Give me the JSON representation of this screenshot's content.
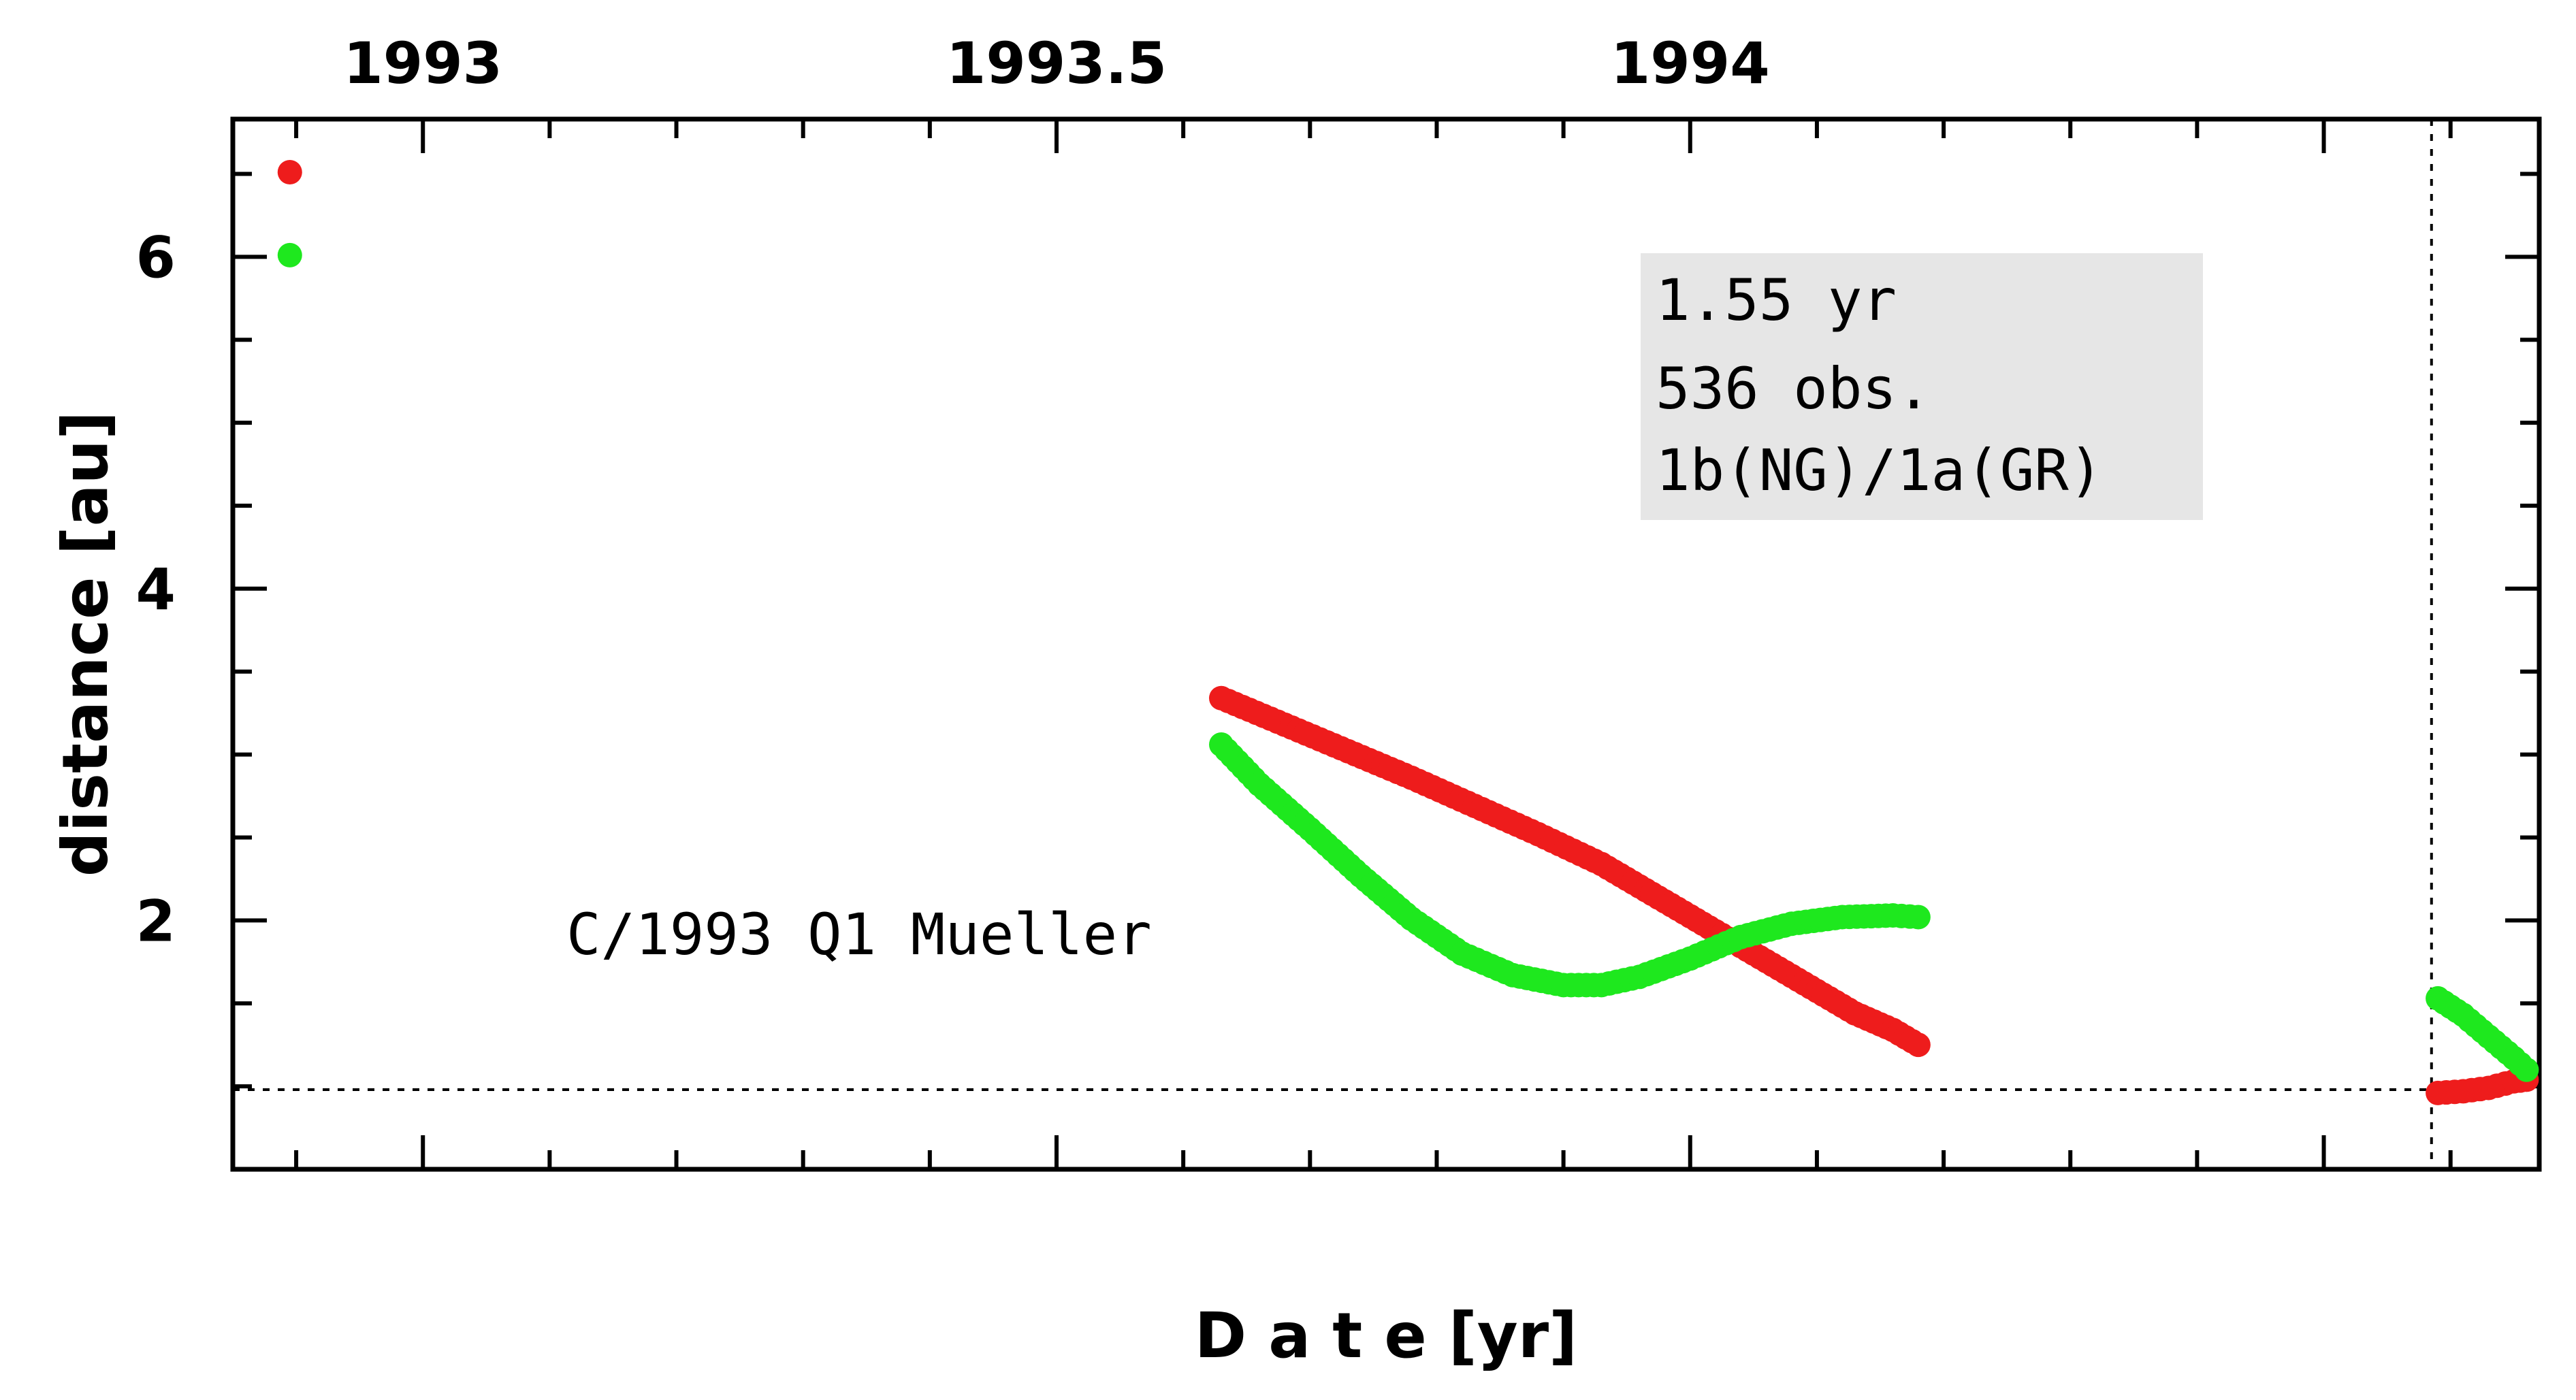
{
  "chart_data": {
    "type": "scatter",
    "title": "",
    "xlabel": "D a t e [yr]",
    "ylabel": "distance [au]",
    "xlim": [
      1992.85,
      1994.67
    ],
    "ylim": [
      0.5,
      6.83
    ],
    "x_ticks": [
      1993,
      1993.5,
      1994
    ],
    "y_ticks": [
      2,
      4,
      6
    ],
    "grid": false,
    "legend": "none",
    "colors": {
      "red_series": "#ee1c1c",
      "green_series": "#1ee81e",
      "box": "#e6e6e6"
    },
    "reference_lines": {
      "horizontal_y": 0.98,
      "vertical_x": 1994.585
    },
    "annotation_box": [
      "1.55 yr",
      "536 obs.",
      "1b(NG)/1a(GR)"
    ],
    "object_label": "C/1993 Q1 Mueller",
    "series": [
      {
        "color": "#ee1c1c",
        "points": [
          [
            1992.895,
            6.51
          ],
          [
            1993.63,
            3.34
          ],
          [
            1993.68,
            3.18
          ],
          [
            1993.73,
            3.02
          ],
          [
            1993.78,
            2.86
          ],
          [
            1993.83,
            2.69
          ],
          [
            1993.88,
            2.52
          ],
          [
            1993.93,
            2.34
          ],
          [
            1993.97,
            2.16
          ],
          [
            1994.01,
            1.98
          ],
          [
            1994.05,
            1.8
          ],
          [
            1994.09,
            1.62
          ],
          [
            1994.13,
            1.44
          ],
          [
            1994.16,
            1.34
          ],
          [
            1994.18,
            1.25
          ],
          [
            1994.59,
            0.96
          ],
          [
            1994.61,
            0.97
          ],
          [
            1994.63,
            0.99
          ],
          [
            1994.65,
            1.03
          ],
          [
            1994.66,
            1.04
          ]
        ]
      },
      {
        "color": "#1ee81e",
        "points": [
          [
            1992.895,
            6.01
          ],
          [
            1993.63,
            3.06
          ],
          [
            1993.66,
            2.82
          ],
          [
            1993.7,
            2.55
          ],
          [
            1993.74,
            2.27
          ],
          [
            1993.78,
            2.01
          ],
          [
            1993.82,
            1.8
          ],
          [
            1993.86,
            1.67
          ],
          [
            1993.9,
            1.61
          ],
          [
            1993.93,
            1.61
          ],
          [
            1993.96,
            1.66
          ],
          [
            1994.0,
            1.77
          ],
          [
            1994.04,
            1.9
          ],
          [
            1994.08,
            1.98
          ],
          [
            1994.12,
            2.02
          ],
          [
            1994.16,
            2.03
          ],
          [
            1994.18,
            2.02
          ],
          [
            1994.59,
            1.53
          ],
          [
            1994.61,
            1.43
          ],
          [
            1994.63,
            1.3
          ],
          [
            1994.65,
            1.17
          ],
          [
            1994.66,
            1.1
          ]
        ]
      }
    ]
  }
}
